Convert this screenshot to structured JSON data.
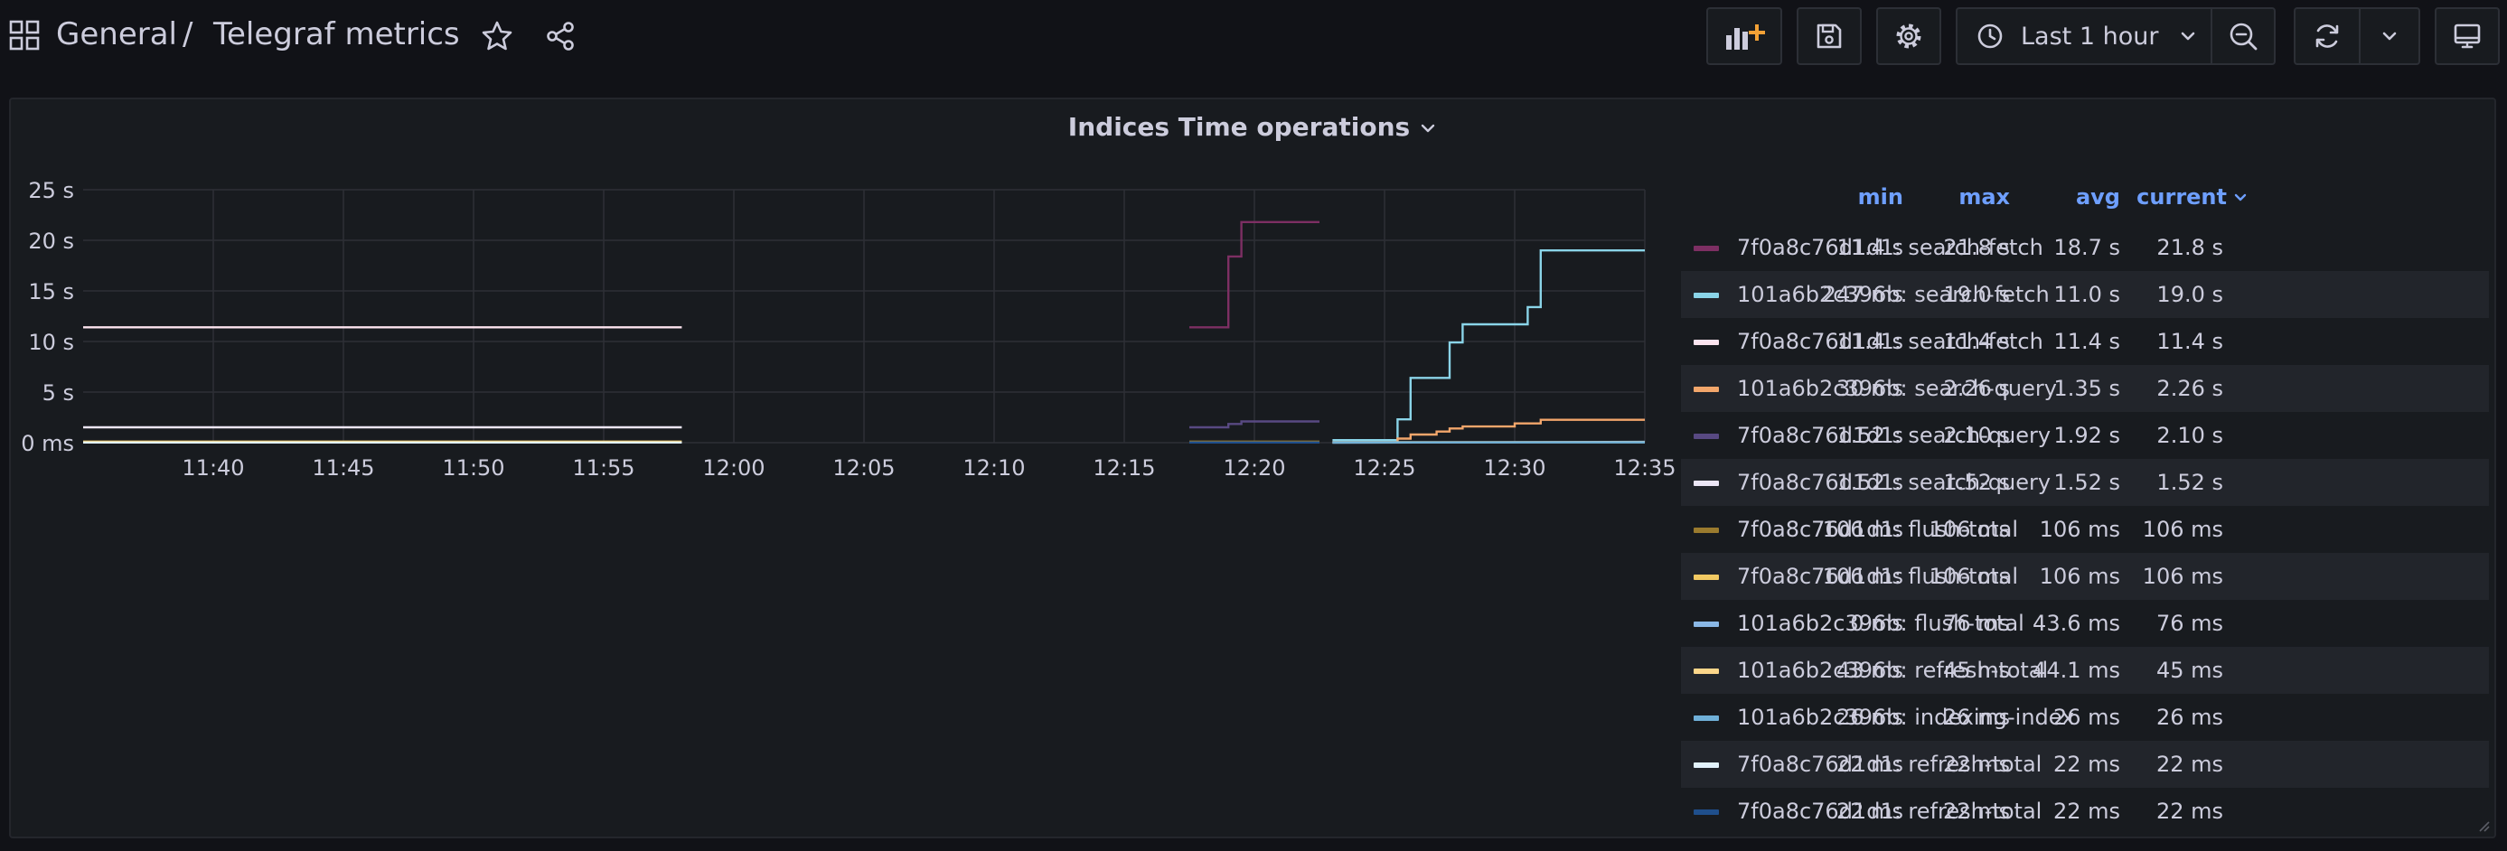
{
  "breadcrumb": {
    "folder": "General",
    "separator": "/",
    "dashboard": "Telegraf metrics"
  },
  "toolbar": {
    "add_panel_icon": "add-panel-icon",
    "save_icon": "save-icon",
    "settings_icon": "gear-icon",
    "time_range_label": "Last 1 hour",
    "zoom_out_icon": "zoom-out-icon",
    "refresh_icon": "refresh-icon",
    "tv_mode_icon": "monitor-icon"
  },
  "panel": {
    "title": "Indices Time operations"
  },
  "legend": {
    "headers": {
      "min": "min",
      "max": "max",
      "avg": "avg",
      "current": "current"
    },
    "rows": [
      {
        "name": "7f0a8c76d1d1: search-fetch",
        "color": "#7d2f63",
        "min": "11.4 s",
        "max": "21.8 s",
        "avg": "18.7 s",
        "current": "21.8 s"
      },
      {
        "name": "101a6b2c396b: search-fetch",
        "color": "#8ad4e8",
        "min": "247 ms",
        "max": "19.0 s",
        "avg": "11.0 s",
        "current": "19.0 s"
      },
      {
        "name": "7f0a8c76d1d1: search-fetch",
        "color": "#fce4ef",
        "min": "11.4 s",
        "max": "11.4 s",
        "avg": "11.4 s",
        "current": "11.4 s"
      },
      {
        "name": "101a6b2c396b: search-query",
        "color": "#f2a66b",
        "min": "30 ms",
        "max": "2.26 s",
        "avg": "1.35 s",
        "current": "2.26 s"
      },
      {
        "name": "7f0a8c76d1d1: search-query",
        "color": "#584982",
        "min": "1.52 s",
        "max": "2.10 s",
        "avg": "1.92 s",
        "current": "2.10 s"
      },
      {
        "name": "7f0a8c76d1d1: search-query",
        "color": "#ece6f6",
        "min": "1.52 s",
        "max": "1.52 s",
        "avg": "1.52 s",
        "current": "1.52 s"
      },
      {
        "name": "7f0a8c76d1d1: flush-total",
        "color": "#9a7b2e",
        "min": "106 ms",
        "max": "106 ms",
        "avg": "106 ms",
        "current": "106 ms"
      },
      {
        "name": "7f0a8c76d1d1: flush-total",
        "color": "#f2c962",
        "min": "106 ms",
        "max": "106 ms",
        "avg": "106 ms",
        "current": "106 ms"
      },
      {
        "name": "101a6b2c396b: flush-total",
        "color": "#8ab8e6",
        "min": "0 ms",
        "max": "76 ms",
        "avg": "43.6 ms",
        "current": "76 ms"
      },
      {
        "name": "101a6b2c396b: refresh-total",
        "color": "#fcd68a",
        "min": "43 ms",
        "max": "45 ms",
        "avg": "44.1 ms",
        "current": "45 ms"
      },
      {
        "name": "101a6b2c396b: indexing-index",
        "color": "#6fb0d8",
        "min": "26 ms",
        "max": "26 ms",
        "avg": "26 ms",
        "current": "26 ms"
      },
      {
        "name": "7f0a8c76d1d1: refresh-total",
        "color": "#e2f2fc",
        "min": "22 ms",
        "max": "22 ms",
        "avg": "22 ms",
        "current": "22 ms"
      },
      {
        "name": "7f0a8c76d1d1: refresh-total",
        "color": "#1f4f8c",
        "min": "22 ms",
        "max": "22 ms",
        "avg": "22 ms",
        "current": "22 ms"
      }
    ]
  },
  "chart_data": {
    "type": "line",
    "title": "Indices Time operations",
    "xlabel": "",
    "ylabel": "",
    "x_ticks": [
      "11:40",
      "11:45",
      "11:50",
      "11:55",
      "12:00",
      "12:05",
      "12:10",
      "12:15",
      "12:20",
      "12:25",
      "12:30",
      "12:35"
    ],
    "xlim": [
      "11:35",
      "12:35"
    ],
    "y_ticks": [
      "0 ms",
      "5 s",
      "10 s",
      "15 s",
      "20 s",
      "25 s"
    ],
    "ylim": [
      0,
      25
    ],
    "y_unit": "s",
    "grid": true,
    "legend_placement": "right",
    "series": [
      {
        "name": "7f0a8c76d1d1: search-fetch",
        "color": "#7d2f63",
        "step": true,
        "points": [
          [
            "12:17:30",
            11.4
          ],
          [
            "12:19:00",
            11.4
          ],
          [
            "12:19:00",
            18.4
          ],
          [
            "12:19:30",
            18.4
          ],
          [
            "12:19:30",
            21.8
          ],
          [
            "12:22:30",
            21.8
          ]
        ]
      },
      {
        "name": "101a6b2c396b: search-fetch",
        "color": "#8ad4e8",
        "step": true,
        "points": [
          [
            "12:23:00",
            0.25
          ],
          [
            "12:25:30",
            0.25
          ],
          [
            "12:25:30",
            2.3
          ],
          [
            "12:26:00",
            2.3
          ],
          [
            "12:26:00",
            6.4
          ],
          [
            "12:27:30",
            6.4
          ],
          [
            "12:27:30",
            9.9
          ],
          [
            "12:28:00",
            9.9
          ],
          [
            "12:28:00",
            11.7
          ],
          [
            "12:30:30",
            11.7
          ],
          [
            "12:30:30",
            13.4
          ],
          [
            "12:31:00",
            13.4
          ],
          [
            "12:31:00",
            19.0
          ],
          [
            "12:35:00",
            19.0
          ]
        ]
      },
      {
        "name": "7f0a8c76d1d1: search-fetch",
        "color": "#fce4ef",
        "step": false,
        "points": [
          [
            "11:35:00",
            11.4
          ],
          [
            "11:58:00",
            11.4
          ]
        ]
      },
      {
        "name": "101a6b2c396b: search-query",
        "color": "#f2a66b",
        "step": true,
        "points": [
          [
            "12:23:00",
            0.03
          ],
          [
            "12:25:30",
            0.03
          ],
          [
            "12:25:30",
            0.4
          ],
          [
            "12:26:00",
            0.4
          ],
          [
            "12:26:00",
            0.8
          ],
          [
            "12:27:00",
            0.8
          ],
          [
            "12:27:00",
            1.1
          ],
          [
            "12:27:30",
            1.1
          ],
          [
            "12:27:30",
            1.4
          ],
          [
            "12:28:00",
            1.4
          ],
          [
            "12:28:00",
            1.6
          ],
          [
            "12:30:00",
            1.6
          ],
          [
            "12:30:00",
            1.9
          ],
          [
            "12:31:00",
            1.9
          ],
          [
            "12:31:00",
            2.26
          ],
          [
            "12:35:00",
            2.26
          ]
        ]
      },
      {
        "name": "7f0a8c76d1d1: search-query",
        "color": "#584982",
        "step": true,
        "points": [
          [
            "12:17:30",
            1.52
          ],
          [
            "12:19:00",
            1.52
          ],
          [
            "12:19:00",
            1.85
          ],
          [
            "12:19:30",
            1.85
          ],
          [
            "12:19:30",
            2.1
          ],
          [
            "12:22:30",
            2.1
          ]
        ]
      },
      {
        "name": "7f0a8c76d1d1: search-query",
        "color": "#ece6f6",
        "step": false,
        "points": [
          [
            "11:35:00",
            1.52
          ],
          [
            "11:58:00",
            1.52
          ]
        ]
      },
      {
        "name": "7f0a8c76d1d1: flush-total",
        "color": "#9a7b2e",
        "step": false,
        "points": [
          [
            "12:17:30",
            0.106
          ],
          [
            "12:22:30",
            0.106
          ]
        ]
      },
      {
        "name": "7f0a8c76d1d1: flush-total",
        "color": "#f2c962",
        "step": false,
        "points": [
          [
            "11:35:00",
            0.106
          ],
          [
            "11:58:00",
            0.106
          ]
        ]
      },
      {
        "name": "101a6b2c396b: flush-total",
        "color": "#8ab8e6",
        "step": false,
        "points": [
          [
            "12:23:00",
            0.0
          ],
          [
            "12:35:00",
            0.076
          ]
        ]
      },
      {
        "name": "101a6b2c396b: refresh-total",
        "color": "#fcd68a",
        "step": false,
        "points": [
          [
            "12:23:00",
            0.043
          ],
          [
            "12:35:00",
            0.045
          ]
        ]
      },
      {
        "name": "101a6b2c396b: indexing-index",
        "color": "#6fb0d8",
        "step": false,
        "points": [
          [
            "12:23:00",
            0.026
          ],
          [
            "12:35:00",
            0.026
          ]
        ]
      },
      {
        "name": "7f0a8c76d1d1: refresh-total",
        "color": "#e2f2fc",
        "step": false,
        "points": [
          [
            "11:35:00",
            0.022
          ],
          [
            "11:58:00",
            0.022
          ]
        ]
      },
      {
        "name": "7f0a8c76d1d1: refresh-total",
        "color": "#1f4f8c",
        "step": false,
        "points": [
          [
            "12:17:30",
            0.022
          ],
          [
            "12:22:30",
            0.022
          ]
        ]
      }
    ]
  }
}
